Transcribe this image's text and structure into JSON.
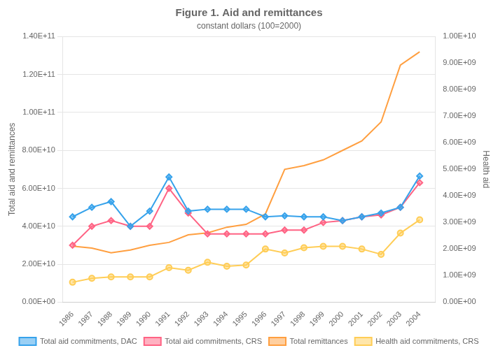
{
  "chart_data": {
    "type": "line",
    "title": "Figure 1. Aid and remittances",
    "subtitle": "constant dollars (100=2000)",
    "ylabel": "Total aid and remittances",
    "y2label": "Health aid",
    "x": [
      1986,
      1987,
      1988,
      1989,
      1990,
      1991,
      1992,
      1993,
      1994,
      1995,
      1996,
      1997,
      1998,
      1999,
      2000,
      2001,
      2002,
      2003,
      2004
    ],
    "series": [
      {
        "name": "Total aid commitments, DAC",
        "marker": "diamond",
        "values": [
          45000000000.0,
          50000000000.0,
          53000000000.0,
          40000000000.0,
          48000000000.0,
          66000000000.0,
          48000000000.0,
          49000000000.0,
          49000000000.0,
          49000000000.0,
          45000000000.0,
          45500000000.0,
          45000000000.0,
          45000000000.0,
          43000000000.0,
          45000000000.0,
          47000000000.0,
          50000000000.0,
          66500000000.0
        ]
      },
      {
        "name": "Total aid commitments, CRS",
        "marker": "diamond",
        "values": [
          30000000000.0,
          40000000000.0,
          43000000000.0,
          40000000000.0,
          40000000000.0,
          60000000000.0,
          47000000000.0,
          36000000000.0,
          36000000000.0,
          36000000000.0,
          36000000000.0,
          38000000000.0,
          38000000000.0,
          42000000000.0,
          43000000000.0,
          45000000000.0,
          46000000000.0,
          50000000000.0,
          63000000000.0
        ]
      },
      {
        "name": "Total remittances",
        "marker": "none",
        "values": [
          29500000000.0,
          28500000000.0,
          26000000000.0,
          27500000000.0,
          30000000000.0,
          31500000000.0,
          35500000000.0,
          36500000000.0,
          39500000000.0,
          41000000000.0,
          46500000000.0,
          70000000000.0,
          72000000000.0,
          75000000000.0,
          80000000000.0,
          85000000000.0,
          95000000000.0,
          125000000000.0,
          132000000000.0
        ]
      },
      {
        "name": "Health aid commitments, CRS",
        "marker": "circle",
        "axis": "y2",
        "values": [
          750000000.0,
          900000000.0,
          950000000.0,
          950000000.0,
          950000000.0,
          1300000000.0,
          1200000000.0,
          1500000000.0,
          1350000000.0,
          1400000000.0,
          2000000000.0,
          1850000000.0,
          2050000000.0,
          2100000000.0,
          2100000000.0,
          2000000000.0,
          1800000000.0,
          2600000000.0,
          3100000000.0
        ]
      }
    ],
    "xlim": [
      1985.5,
      2004.8
    ],
    "xticks": [
      1986,
      1987,
      1988,
      1989,
      1990,
      1991,
      1992,
      1993,
      1994,
      1995,
      1996,
      1997,
      1998,
      1999,
      2000,
      2001,
      2002,
      2003,
      2004
    ],
    "ylim": [
      0,
      140000000000.0
    ],
    "yticks": [
      {
        "value": 0,
        "label": "0.00E+00"
      },
      {
        "value": 20000000000.0,
        "label": "2.00E+10"
      },
      {
        "value": 40000000000.0,
        "label": "4.00E+10"
      },
      {
        "value": 60000000000.0,
        "label": "6.00E+10"
      },
      {
        "value": 80000000000.0,
        "label": "8.00E+10"
      },
      {
        "value": 100000000000.0,
        "label": "1.00E+11"
      },
      {
        "value": 120000000000.0,
        "label": "1.20E+11"
      },
      {
        "value": 140000000000.0,
        "label": "1.40E+11"
      }
    ],
    "y2lim": [
      0,
      10000000000.0
    ],
    "y2ticks": [
      {
        "value": 0,
        "label": "0.00E+00"
      },
      {
        "value": 1000000000.0,
        "label": "1.00E+09"
      },
      {
        "value": 2000000000.0,
        "label": "2.00E+09"
      },
      {
        "value": 3000000000.0,
        "label": "3.00E+09"
      },
      {
        "value": 4000000000.0,
        "label": "4.00E+09"
      },
      {
        "value": 5000000000.0,
        "label": "5.00E+09"
      },
      {
        "value": 6000000000.0,
        "label": "6.00E+09"
      },
      {
        "value": 7000000000.0,
        "label": "7.00E+09"
      },
      {
        "value": 8000000000.0,
        "label": "8.00E+09"
      },
      {
        "value": 9000000000.0,
        "label": "9.00E+09"
      },
      {
        "value": 10000000000.0,
        "label": "1.00E+10"
      }
    ],
    "grid": "y",
    "legend": "bottom"
  }
}
